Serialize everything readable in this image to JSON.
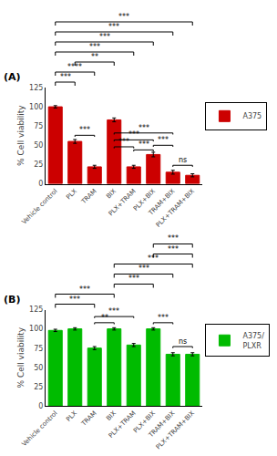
{
  "chart_data": [
    {
      "type": "bar",
      "title": "(A)",
      "categories": [
        "Vehicle control",
        "PLX",
        "TRAM",
        "BIX",
        "PLX+TRAM",
        "PLX+BIX",
        "TRAM+BIX",
        "PLX+TRAM+BIX"
      ],
      "series": [
        {
          "name": "A375",
          "color": "#CC0000",
          "values": [
            100,
            55,
            22,
            83,
            22,
            38,
            15,
            11
          ],
          "errors": [
            1.5,
            2.5,
            2.0,
            2.5,
            2.0,
            3.0,
            2.5,
            2.0
          ]
        }
      ],
      "y_label": "% Cell viability",
      "ylim": [
        0,
        125
      ],
      "yticks": [
        0,
        25,
        50,
        75,
        100,
        125
      ],
      "grid": false,
      "legend": "right",
      "annotations": [
        {
          "text": "***",
          "from": "PLX",
          "to": "TRAM",
          "y": 63
        },
        {
          "text": "***",
          "from": "BIX",
          "to": "PLX+TRAM",
          "y": 48
        },
        {
          "text": "***",
          "from": "BIX",
          "to": "PLX+BIX",
          "y": 57
        },
        {
          "text": "***",
          "from": "BIX",
          "to": "TRAM+BIX",
          "y": 66
        },
        {
          "text": "***",
          "from": "PLX+TRAM",
          "to": "PLX+BIX",
          "y": 44
        },
        {
          "text": "***",
          "from": "PLX+BIX",
          "to": "TRAM+BIX",
          "y": 50
        },
        {
          "text": "ns",
          "from": "TRAM+BIX",
          "to": "PLX+TRAM+BIX",
          "y": 24
        },
        {
          "text": "***",
          "from": "Vehicle control",
          "to": "PLX"
        },
        {
          "text": "****",
          "from": "Vehicle control",
          "to": "TRAM"
        },
        {
          "text": "**",
          "from": "PLX",
          "to": "BIX"
        },
        {
          "text": "***",
          "from": "Vehicle control",
          "to": "PLX+TRAM"
        },
        {
          "text": "***",
          "from": "Vehicle control",
          "to": "PLX+BIX"
        },
        {
          "text": "***",
          "from": "Vehicle control",
          "to": "TRAM+BIX"
        },
        {
          "text": "***",
          "from": "Vehicle control",
          "to": "PLX+TRAM+BIX"
        }
      ]
    },
    {
      "type": "bar",
      "title": "(B)",
      "categories": [
        "Vehicle control",
        "PLX",
        "TRAM",
        "BIX",
        "PLX+TRAM",
        "PLX+BIX",
        "TRAM+BIX",
        "PLX+TRAM+BIX"
      ],
      "series": [
        {
          "name": "A375/\nPLXR",
          "color": "#00BB00",
          "values": [
            98,
            100,
            75,
            100,
            79,
            100,
            67,
            67
          ],
          "errors": [
            1.5,
            1.5,
            2.0,
            1.5,
            2.0,
            1.5,
            2.0,
            2.0
          ]
        }
      ],
      "y_label": "% Cell viability",
      "ylim": [
        0,
        125
      ],
      "yticks": [
        0,
        25,
        50,
        75,
        100,
        125
      ],
      "grid": false,
      "legend": "right",
      "annotations": [
        {
          "text": "**",
          "from": "TRAM",
          "to": "BIX",
          "y": 108
        },
        {
          "text": "***",
          "from": "TRAM",
          "to": "PLX+TRAM",
          "y": 116
        },
        {
          "text": "***",
          "from": "PLX+BIX",
          "to": "TRAM+BIX",
          "y": 108
        },
        {
          "text": "ns",
          "from": "TRAM+BIX",
          "to": "PLX+TRAM+BIX",
          "y": 77
        },
        {
          "text": "***",
          "from": "Vehicle control",
          "to": "TRAM"
        },
        {
          "text": "***",
          "from": "Vehicle control",
          "to": "BIX"
        },
        {
          "text": "***",
          "from": "BIX",
          "to": "PLX+BIX"
        },
        {
          "text": "***",
          "from": "BIX",
          "to": "TRAM+BIX"
        },
        {
          "text": "***",
          "from": "BIX",
          "to": "PLX+TRAM+BIX"
        },
        {
          "text": "***",
          "from": "PLX+BIX",
          "to": "PLX+TRAM+BIX"
        },
        {
          "text": "***",
          "from": "PLX+BIX",
          "to": "PLX+TRAM+BIX"
        }
      ]
    }
  ]
}
